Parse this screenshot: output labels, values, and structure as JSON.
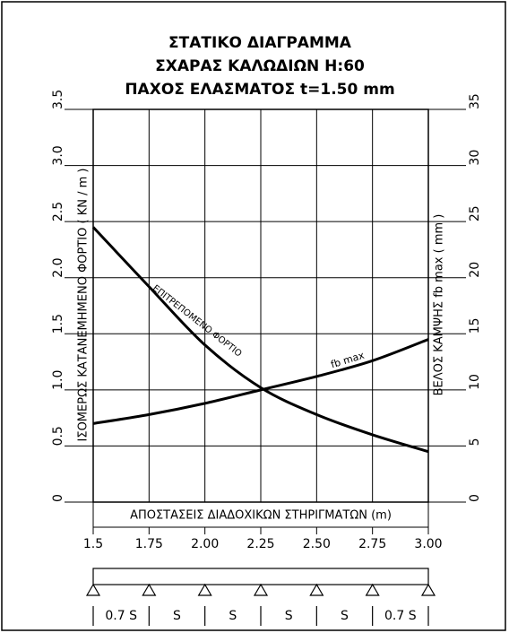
{
  "chart_data": {
    "type": "line",
    "title": [
      "ΣΤΑΤΙΚΟ ΔΙΑΓΡΑΜΜΑ",
      "ΣΧΑΡΑΣ ΚΑΛΩΔΙΩΝ  H:60",
      "ΠΑΧΟΣ ΕΛΑΣΜΑΤΟΣ t=1.50 mm"
    ],
    "x_label": "ΑΠΟΣΤΑΣΕΙΣ ΔΙΑΔΟΧΙΚΩΝ ΣΤΗΡΙΓΜΑΤΩΝ (m)",
    "y_label": "ΙΣΟΜΕΡΩΣ ΚΑΤΑΝΕΜΗΜΕΝΟ ΦΟΡΤΙΟ ( KN / m )",
    "y2_label": "ΒΕΛΟΣ ΚΑΜΨΗΣ fb max ( mm )",
    "x": [
      1.5,
      1.75,
      2,
      2.25,
      2.5,
      2.75,
      3
    ],
    "xlim": [
      1.5,
      3
    ],
    "xticks": [
      1.5,
      1.75,
      {
        "value": 2,
        "label": "2.00"
      },
      2.25,
      {
        "value": 2.5,
        "label": "2.50"
      },
      2.75,
      {
        "value": 3,
        "label": "3.00"
      }
    ],
    "ylim": [
      0,
      3.5
    ],
    "yticks": [
      0,
      {
        "value": 0.5,
        "label": "0.5"
      },
      {
        "value": 1,
        "label": "1.0"
      },
      1.5,
      {
        "value": 2,
        "label": "2.0"
      },
      2.5,
      {
        "value": 3,
        "label": "3.0"
      },
      3.5
    ],
    "y2lim": [
      0,
      35
    ],
    "y2ticks": [
      0,
      5,
      10,
      15,
      20,
      25,
      30,
      35
    ],
    "grid": true,
    "series": [
      {
        "name": "ΕΠΙΤΡΕΠΟΜΕΝΟ ΦΟΡΤΙΟ",
        "color": "#000000",
        "values": [
          2.45,
          1.92,
          1.4,
          1.02,
          0.78,
          0.6,
          0.45
        ]
      },
      {
        "name": "fb max",
        "color": "#000000",
        "axis": "y2",
        "values": [
          7.0,
          7.8,
          8.8,
          10.0,
          11.2,
          12.6,
          14.5
        ]
      }
    ],
    "support_labels": [
      "0.7 S",
      "S",
      "S",
      "S",
      "S",
      "0.7 S"
    ]
  }
}
